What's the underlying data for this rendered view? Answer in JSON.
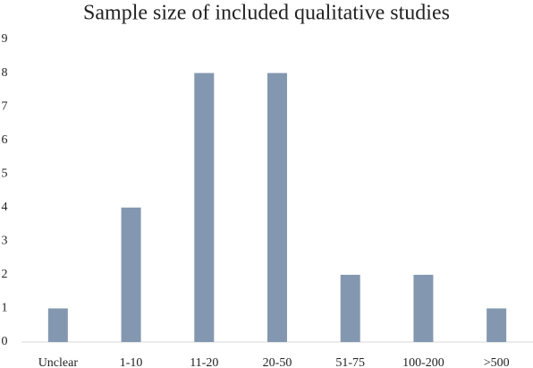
{
  "chart_data": {
    "type": "bar",
    "title": "Sample size of included qualitative studies",
    "categories": [
      "Unclear",
      "1-10",
      "11-20",
      "20-50",
      "51-75",
      "100-200",
      ">500"
    ],
    "values": [
      1,
      4,
      8,
      8,
      2,
      2,
      1
    ],
    "color": "#8497b0",
    "ylim": [
      0,
      9
    ],
    "yticks": [
      0,
      1,
      2,
      3,
      4,
      5,
      6,
      7,
      8,
      9
    ],
    "grid": false
  }
}
